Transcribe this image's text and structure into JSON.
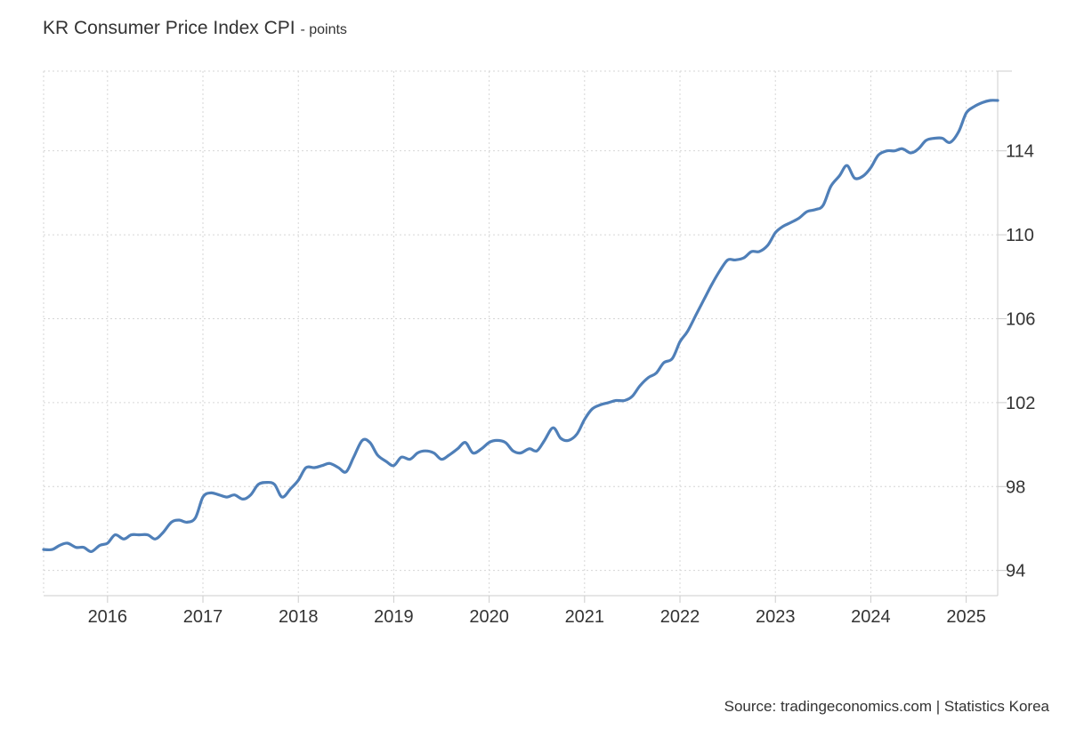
{
  "header": {
    "title": "KR Consumer Price Index CPI",
    "unit": "- points"
  },
  "footer": {
    "source": "Source: tradingeconomics.com | Statistics Korea"
  },
  "colors": {
    "line": "#4f7fb8",
    "grid": "#d6d6d6",
    "axis": "#cccccc",
    "text": "#333333"
  },
  "chart_data": {
    "type": "line",
    "title": "KR Consumer Price Index CPI",
    "subtitle": "- points",
    "xlabel": "",
    "ylabel": "",
    "x_range": [
      2015.33,
      2025.33
    ],
    "ylim": [
      92.8,
      117.8
    ],
    "y_axis_position": "right",
    "grid": true,
    "legend": "none",
    "xticks": [
      2016,
      2017,
      2018,
      2019,
      2020,
      2021,
      2022,
      2023,
      2024,
      2025
    ],
    "xtick_labels": [
      "2016",
      "2017",
      "2018",
      "2019",
      "2020",
      "2021",
      "2022",
      "2023",
      "2024",
      "2025"
    ],
    "yticks": [
      94,
      98,
      102,
      106,
      110,
      114
    ],
    "ytick_labels": [
      "94",
      "98",
      "102",
      "106",
      "110",
      "114"
    ],
    "series": [
      {
        "x": [
          2015.33,
          2015.42,
          2015.5,
          2015.58,
          2015.67,
          2015.75,
          2015.83,
          2015.92,
          2016.0,
          2016.08,
          2016.17,
          2016.25,
          2016.33,
          2016.42,
          2016.5,
          2016.58,
          2016.67,
          2016.75,
          2016.83,
          2016.92,
          2017.0,
          2017.08,
          2017.17,
          2017.25,
          2017.33,
          2017.42,
          2017.5,
          2017.58,
          2017.67,
          2017.75,
          2017.83,
          2017.92,
          2018.0,
          2018.08,
          2018.17,
          2018.25,
          2018.33,
          2018.42,
          2018.5,
          2018.58,
          2018.67,
          2018.75,
          2018.83,
          2018.92,
          2019.0,
          2019.08,
          2019.17,
          2019.25,
          2019.33,
          2019.42,
          2019.5,
          2019.58,
          2019.67,
          2019.75,
          2019.83,
          2019.92,
          2020.0,
          2020.08,
          2020.17,
          2020.25,
          2020.33,
          2020.42,
          2020.5,
          2020.58,
          2020.67,
          2020.75,
          2020.83,
          2020.92,
          2021.0,
          2021.08,
          2021.17,
          2021.25,
          2021.33,
          2021.42,
          2021.5,
          2021.58,
          2021.67,
          2021.75,
          2021.83,
          2021.92,
          2022.0,
          2022.08,
          2022.17,
          2022.25,
          2022.33,
          2022.42,
          2022.5,
          2022.58,
          2022.67,
          2022.75,
          2022.83,
          2022.92,
          2023.0,
          2023.08,
          2023.17,
          2023.25,
          2023.33,
          2023.42,
          2023.5,
          2023.58,
          2023.67,
          2023.75,
          2023.83,
          2023.92,
          2024.0,
          2024.08,
          2024.17,
          2024.25,
          2024.33,
          2024.42,
          2024.5,
          2024.58,
          2024.67,
          2024.75,
          2024.83,
          2024.92,
          2025.0,
          2025.08,
          2025.17,
          2025.25,
          2025.33
        ],
        "y": [
          95.0,
          95.0,
          95.2,
          95.3,
          95.1,
          95.1,
          94.9,
          95.2,
          95.3,
          95.7,
          95.5,
          95.7,
          95.7,
          95.7,
          95.5,
          95.8,
          96.3,
          96.4,
          96.3,
          96.5,
          97.5,
          97.7,
          97.6,
          97.5,
          97.6,
          97.4,
          97.6,
          98.1,
          98.2,
          98.1,
          97.5,
          97.9,
          98.3,
          98.9,
          98.9,
          99.0,
          99.1,
          98.9,
          98.7,
          99.4,
          100.2,
          100.1,
          99.5,
          99.2,
          99.0,
          99.4,
          99.3,
          99.6,
          99.7,
          99.6,
          99.3,
          99.5,
          99.8,
          100.1,
          99.6,
          99.8,
          100.1,
          100.2,
          100.1,
          99.7,
          99.6,
          99.8,
          99.7,
          100.2,
          100.8,
          100.3,
          100.2,
          100.5,
          101.2,
          101.7,
          101.9,
          102.0,
          102.1,
          102.1,
          102.3,
          102.8,
          103.2,
          103.4,
          103.9,
          104.1,
          104.9,
          105.4,
          106.2,
          106.9,
          107.6,
          108.3,
          108.8,
          108.8,
          108.9,
          109.2,
          109.2,
          109.5,
          110.1,
          110.4,
          110.6,
          110.8,
          111.1,
          111.2,
          111.4,
          112.3,
          112.8,
          113.3,
          112.7,
          112.8,
          113.2,
          113.8,
          114.0,
          114.0,
          114.1,
          113.9,
          114.1,
          114.5,
          114.6,
          114.6,
          114.4,
          114.9,
          115.8,
          116.1,
          116.3,
          116.4,
          116.4
        ]
      }
    ]
  }
}
